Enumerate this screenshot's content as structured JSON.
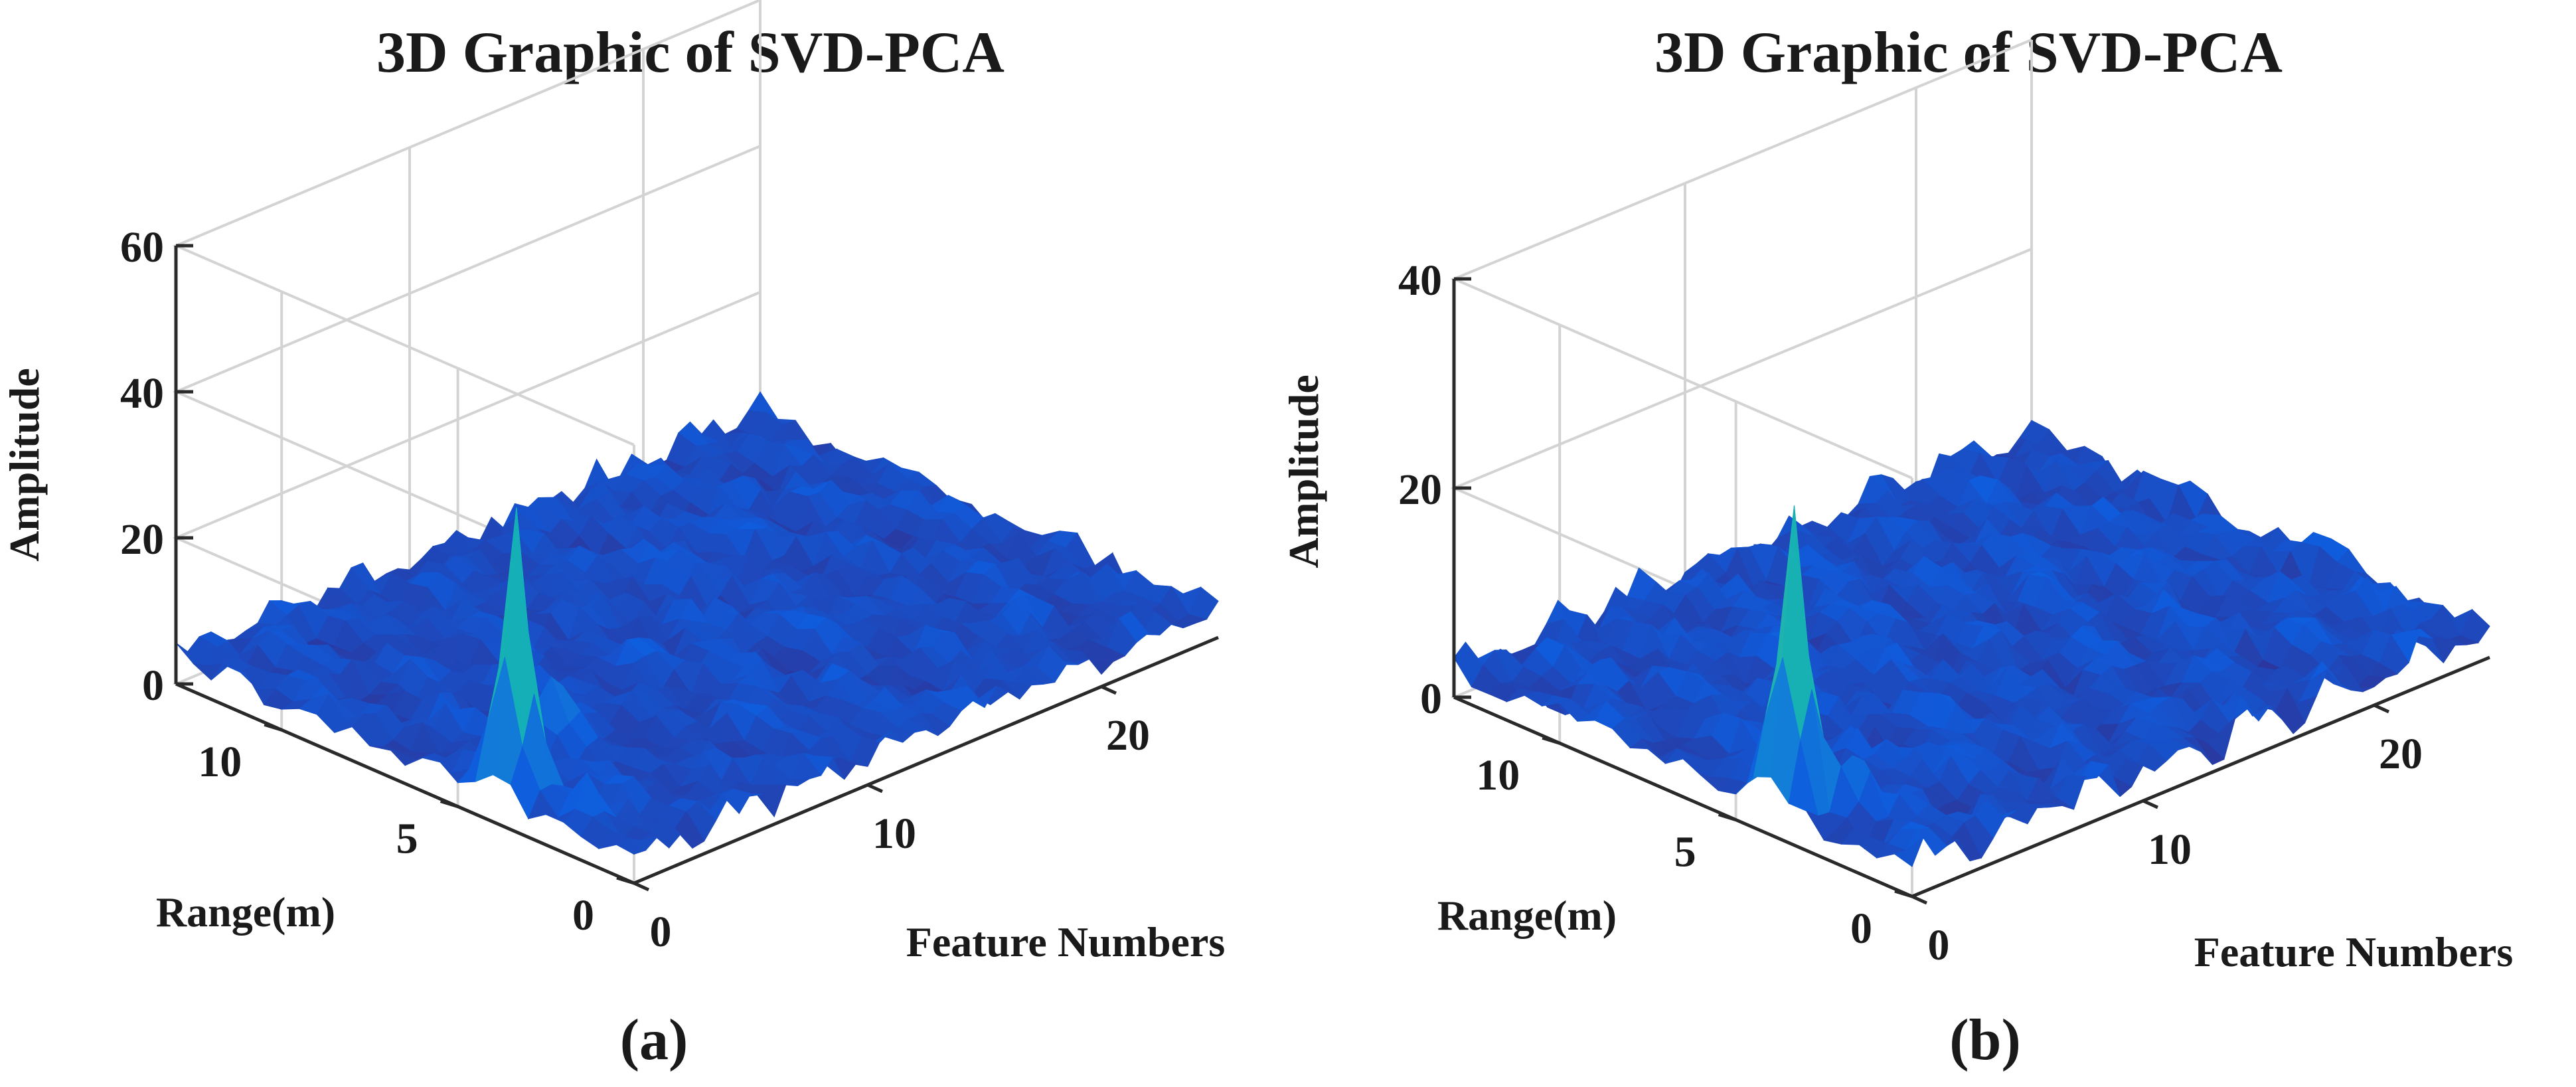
{
  "figure": {
    "panels": [
      {
        "label": "(a)"
      },
      {
        "label": "(b)"
      }
    ]
  },
  "chart_data": [
    {
      "type": "surface3d",
      "title": "3D Graphic of SVD-PCA",
      "xlabel": "Feature Numbers",
      "ylabel": "Range(m)",
      "zlabel": "Amplitude",
      "xlim": [
        0,
        25
      ],
      "ylim": [
        0,
        13
      ],
      "zlim": [
        0,
        60
      ],
      "xticks": [
        "0",
        "10",
        "20"
      ],
      "yticks": [
        "0",
        "5",
        "10"
      ],
      "zticks": [
        "0",
        "20",
        "40",
        "60"
      ],
      "colormap": "parula",
      "grid": true,
      "baseline_amplitude": 4,
      "peaks": [
        {
          "feature": 1,
          "range": 4,
          "amplitude": 37
        },
        {
          "feature": 4,
          "range": 5,
          "amplitude": 8
        },
        {
          "feature": 1,
          "range": 2,
          "amplitude": 6
        }
      ]
    },
    {
      "type": "surface3d",
      "title": "3D Graphic of SVD-PCA",
      "xlabel": "Feature Numbers",
      "ylabel": "Range(m)",
      "zlabel": "Amplitude",
      "xlim": [
        0,
        25
      ],
      "ylim": [
        0,
        13
      ],
      "zlim": [
        0,
        40
      ],
      "xticks": [
        "0",
        "10",
        "20"
      ],
      "yticks": [
        "0",
        "5",
        "10"
      ],
      "zticks": [
        "0",
        "20",
        "40"
      ],
      "colormap": "parula",
      "grid": true,
      "baseline_amplitude": 3,
      "peaks": [
        {
          "feature": 1,
          "range": 4,
          "amplitude": 27
        },
        {
          "feature": 2,
          "range": 3,
          "amplitude": 5
        }
      ]
    }
  ]
}
